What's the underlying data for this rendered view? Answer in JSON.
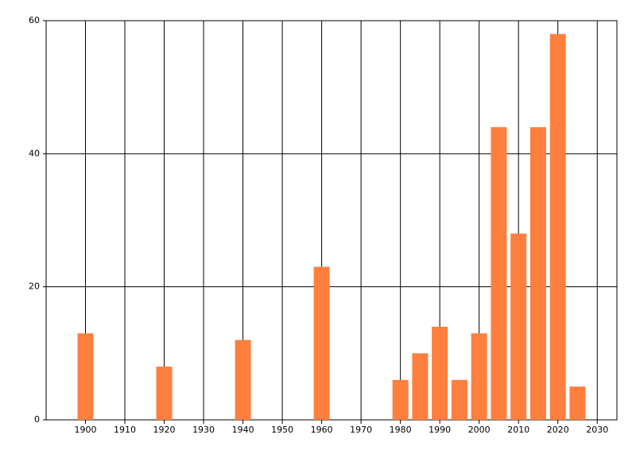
{
  "chart_data": {
    "type": "bar",
    "x": [
      1900,
      1920,
      1940,
      1960,
      1980,
      1985,
      1990,
      1995,
      2000,
      2005,
      2010,
      2015,
      2020,
      2025
    ],
    "values": [
      13,
      8,
      12,
      23,
      6,
      10,
      14,
      6,
      13,
      44,
      28,
      44,
      58,
      5
    ],
    "color": "#ff7f3f",
    "xlim": [
      1890,
      2035
    ],
    "xticks": [
      1900,
      1910,
      1920,
      1930,
      1940,
      1950,
      1960,
      1970,
      1980,
      1990,
      2000,
      2010,
      2020,
      2030
    ],
    "ylim": [
      0,
      60
    ],
    "yticks": [
      0,
      20,
      40,
      60
    ],
    "grid": true
  }
}
